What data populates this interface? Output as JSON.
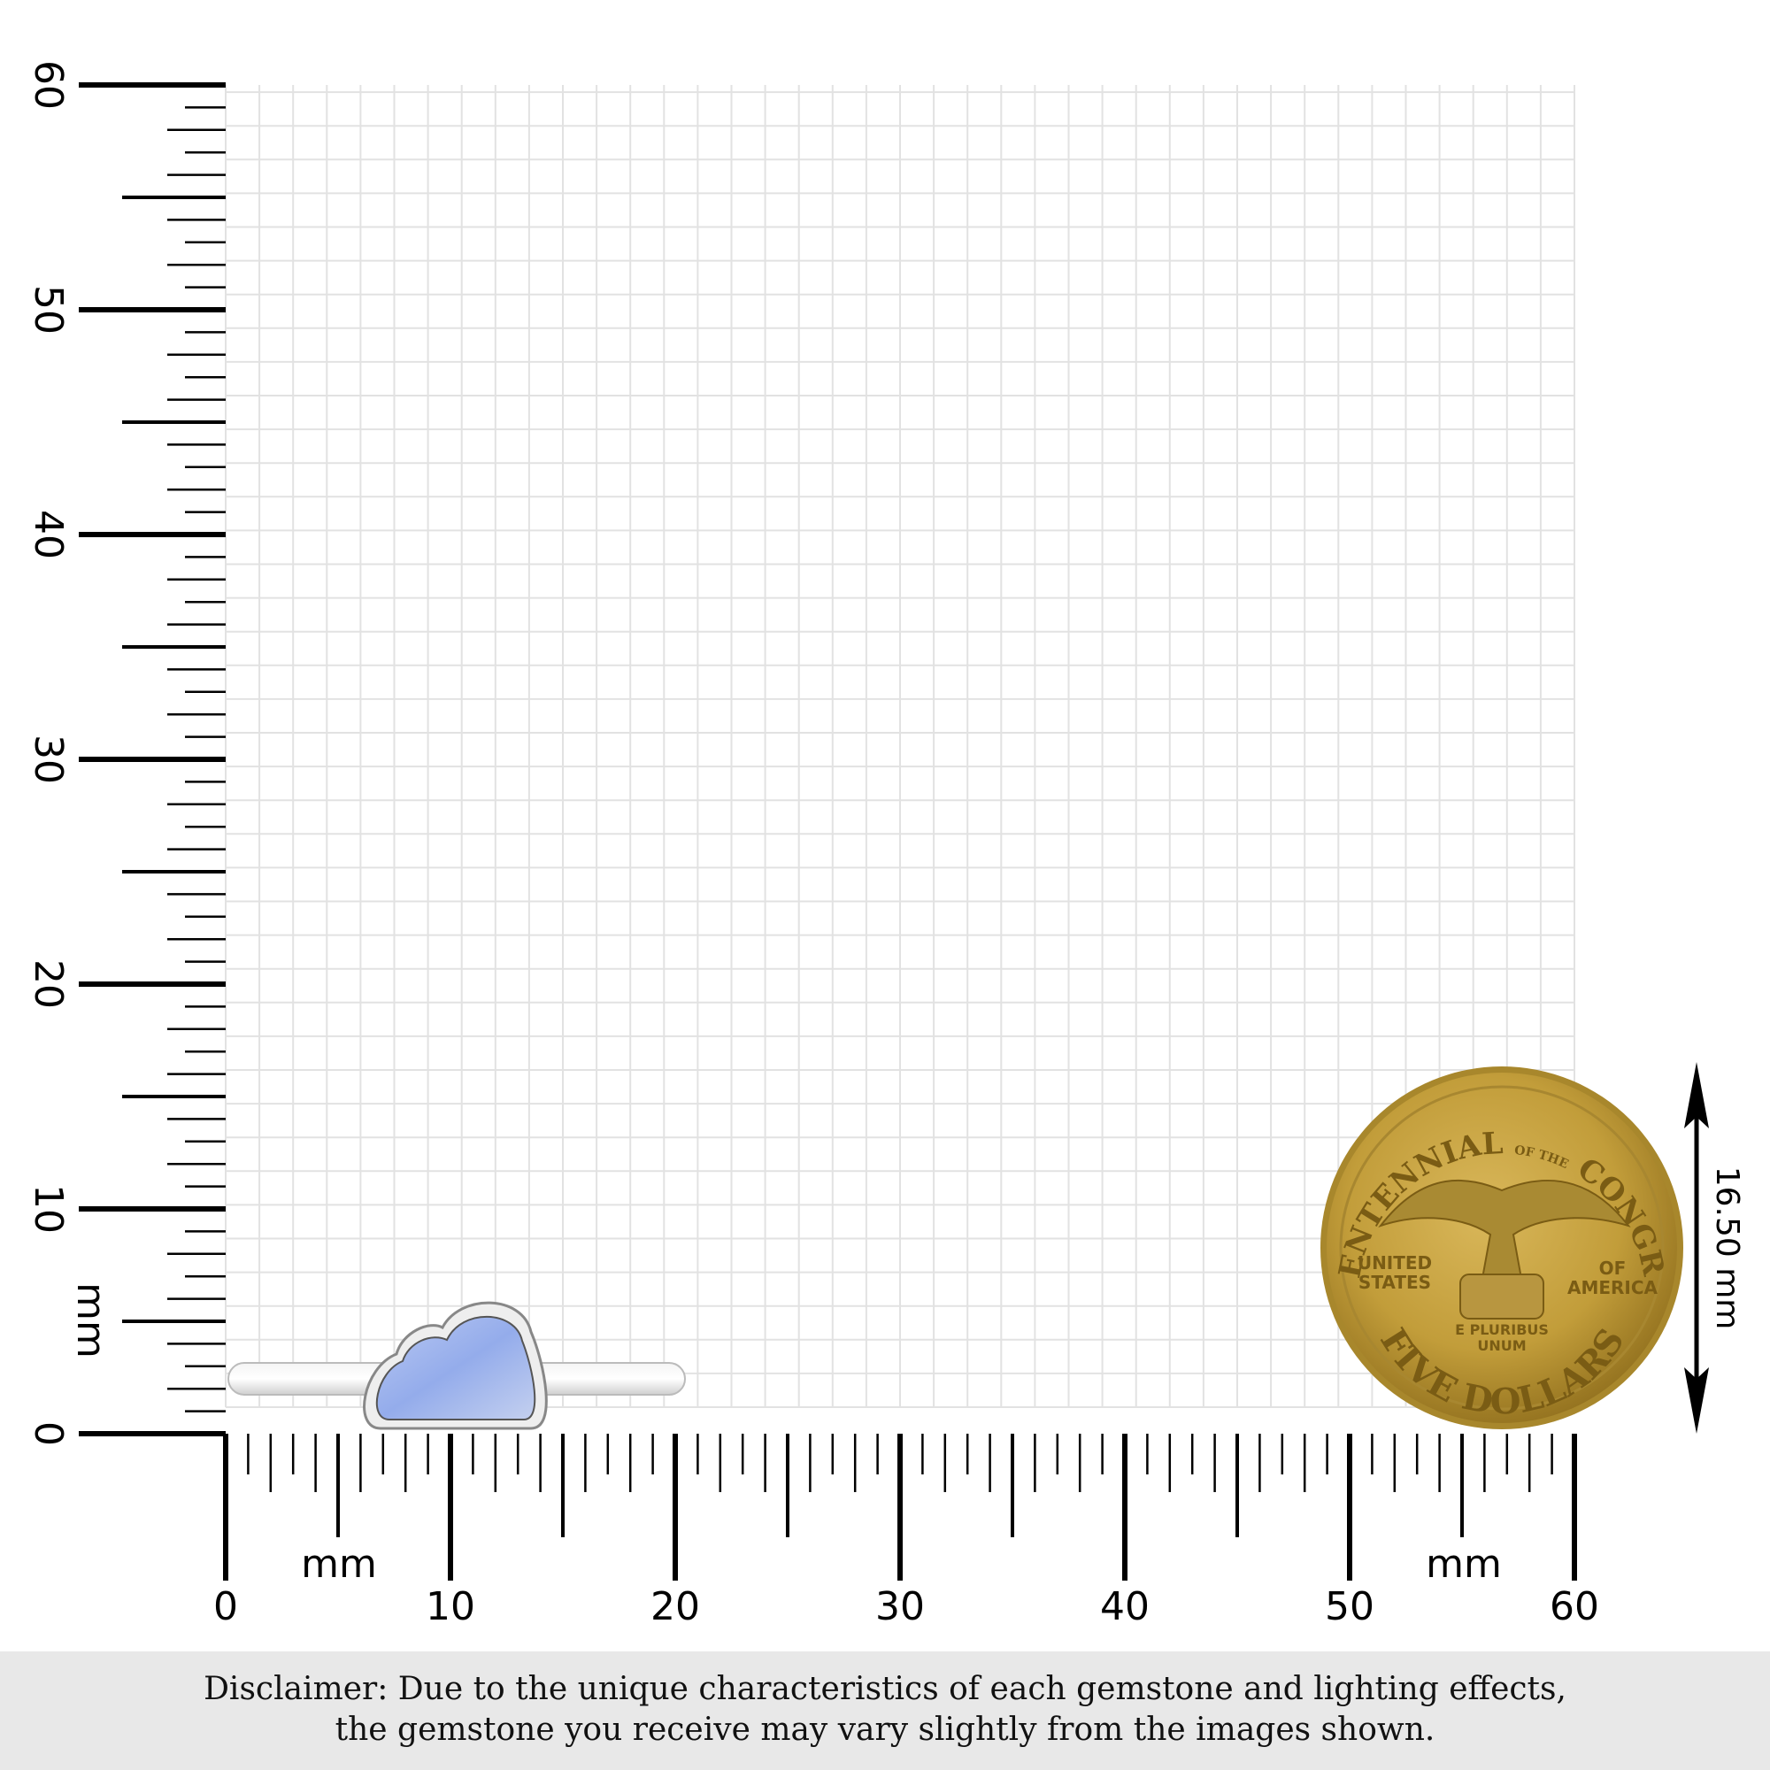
{
  "ruler": {
    "unit_label": "mm",
    "x_labels": [
      "0",
      "10",
      "20",
      "30",
      "40",
      "50",
      "60"
    ],
    "y_labels": [
      "0",
      "10",
      "20",
      "30",
      "40",
      "50",
      "60"
    ],
    "max_mm": 60
  },
  "product": {
    "name_icon": "cloud-gemstone-ring",
    "gem_color": "#9fb4ec",
    "metal_color": "#e6e6e6"
  },
  "coin": {
    "top_text": "BICENTENNIAL",
    "of_the": "OF THE",
    "top_text2": "CONGRESS",
    "left_text": [
      "UNITED",
      "STATES"
    ],
    "right_text": [
      "OF",
      "AMERICA"
    ],
    "motto": [
      "E PLURIBUS",
      "UNUM"
    ],
    "bottom_text": "FIVE DOLLARS",
    "color": "#c9a53e"
  },
  "measurement": {
    "label": "16.50 mm"
  },
  "disclaimer": {
    "line1": "Disclaimer: Due to the unique characteristics of each gemstone and lighting effects,",
    "line2": "the gemstone you receive may vary slightly from the images shown."
  }
}
